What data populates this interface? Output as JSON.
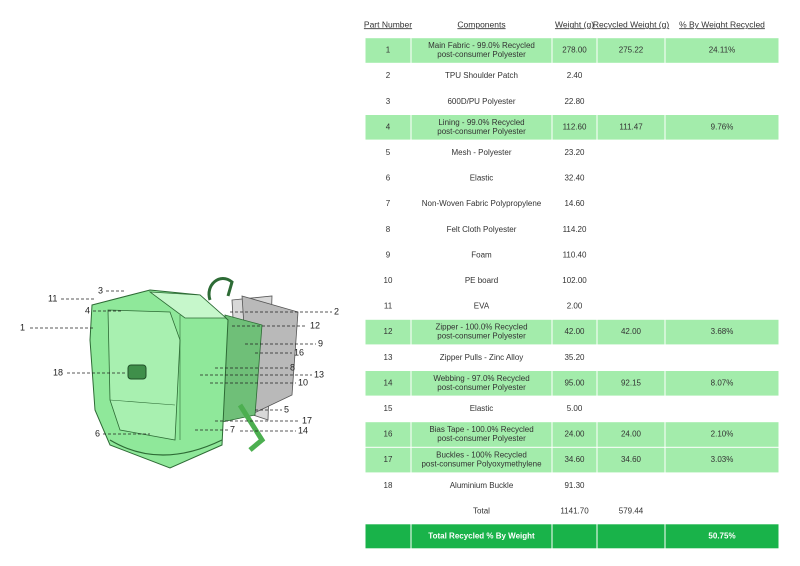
{
  "diagram": {
    "callouts": [
      "1",
      "2",
      "3",
      "4",
      "5",
      "6",
      "7",
      "8",
      "9",
      "10",
      "11",
      "12",
      "13",
      "14",
      "16",
      "17",
      "18"
    ]
  },
  "table": {
    "headers": [
      "Part Number",
      "Components",
      "Weight (g)",
      "Recycled Weight (g)",
      "% By Weight Recycled"
    ],
    "rows": [
      {
        "part": "1",
        "component": [
          "Main Fabric - 99.0% Recycled",
          "post-consumer Polyester"
        ],
        "weight": "278.00",
        "recycled": "275.22",
        "percent": "24.11%",
        "highlighted": true
      },
      {
        "part": "2",
        "component": [
          "TPU Shoulder Patch"
        ],
        "weight": "2.40"
      },
      {
        "part": "3",
        "component": [
          "600D/PU Polyester"
        ],
        "weight": "22.80"
      },
      {
        "part": "4",
        "component": [
          "Lining - 99.0% Recycled",
          "post-consumer Polyester"
        ],
        "weight": "112.60",
        "recycled": "111.47",
        "percent": "9.76%",
        "highlighted": true
      },
      {
        "part": "5",
        "component": [
          "Mesh - Polyester"
        ],
        "weight": "23.20"
      },
      {
        "part": "6",
        "component": [
          "Elastic"
        ],
        "weight": "32.40"
      },
      {
        "part": "7",
        "component": [
          "Non-Woven Fabric Polypropylene"
        ],
        "weight": "14.60"
      },
      {
        "part": "8",
        "component": [
          "Felt Cloth Polyester"
        ],
        "weight": "114.20"
      },
      {
        "part": "9",
        "component": [
          "Foam"
        ],
        "weight": "110.40"
      },
      {
        "part": "10",
        "component": [
          "PE board"
        ],
        "weight": "102.00"
      },
      {
        "part": "11",
        "component": [
          "EVA"
        ],
        "weight": "2.00"
      },
      {
        "part": "12",
        "component": [
          "Zipper - 100.0% Recycled",
          "post-consumer Polyester"
        ],
        "weight": "42.00",
        "recycled": "42.00",
        "percent": "3.68%",
        "highlighted": true
      },
      {
        "part": "13",
        "component": [
          "Zipper Pulls - Zinc Alloy"
        ],
        "weight": "35.20"
      },
      {
        "part": "14",
        "component": [
          "Webbing - 97.0% Recycled",
          "post-consumer Polyester"
        ],
        "weight": "95.00",
        "recycled": "92.15",
        "percent": "8.07%",
        "highlighted": true
      },
      {
        "part": "15",
        "component": [
          "Elastic"
        ],
        "weight": "5.00"
      },
      {
        "part": "16",
        "component": [
          "Bias Tape - 100.0% Recycled",
          "post-consumer Polyester"
        ],
        "weight": "24.00",
        "recycled": "24.00",
        "percent": "2.10%",
        "highlighted": true
      },
      {
        "part": "17",
        "component": [
          "Buckles - 100% Recycled",
          "post-consumer Polyoxymethylene"
        ],
        "weight": "34.60",
        "recycled": "34.60",
        "percent": "3.03%",
        "highlighted": true
      },
      {
        "part": "18",
        "component": [
          "Aluminium Buckle"
        ],
        "weight": "91.30"
      }
    ],
    "total": {
      "label": "Total",
      "weight": "1141.70",
      "recycled": "579.44"
    },
    "summary": {
      "label": "Total Recycled % By Weight",
      "percent": "50.75%"
    }
  }
}
